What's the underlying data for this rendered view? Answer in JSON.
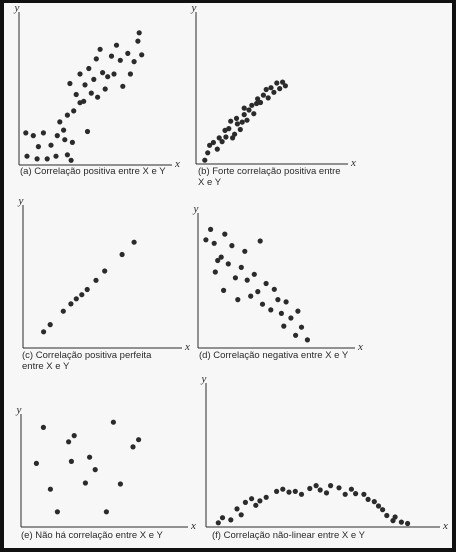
{
  "figure": {
    "background": "#111111",
    "paper_color": "#f7f7f7",
    "ink_color": "#2b2b2b",
    "axis_x_label": "x",
    "axis_y_label": "y"
  },
  "chart_data": [
    {
      "type": "scatter",
      "caption": "(a) Correlação positiva entre X e Y",
      "xlabel": "x",
      "ylabel": "y",
      "xlim": [
        0,
        10
      ],
      "ylim": [
        0,
        10
      ],
      "grid": false,
      "points": [
        [
          0.3,
          2.2
        ],
        [
          0.9,
          2.0
        ],
        [
          1.3,
          1.2
        ],
        [
          1.7,
          2.2
        ],
        [
          2.0,
          0.3
        ],
        [
          0.4,
          0.5
        ],
        [
          1.2,
          0.3
        ],
        [
          2.3,
          1.3
        ],
        [
          2.7,
          0.5
        ],
        [
          3.0,
          3.0
        ],
        [
          2.8,
          2.0
        ],
        [
          3.4,
          1.7
        ],
        [
          3.6,
          0.6
        ],
        [
          3.9,
          0.2
        ],
        [
          3.3,
          2.4
        ],
        [
          4.0,
          1.5
        ],
        [
          3.6,
          3.5
        ],
        [
          4.1,
          3.8
        ],
        [
          3.8,
          5.8
        ],
        [
          4.3,
          5.0
        ],
        [
          4.6,
          4.4
        ],
        [
          4.9,
          4.5
        ],
        [
          4.6,
          6.5
        ],
        [
          5.2,
          2.3
        ],
        [
          5.0,
          5.7
        ],
        [
          5.3,
          6.9
        ],
        [
          5.5,
          5.1
        ],
        [
          5.7,
          6.1
        ],
        [
          5.9,
          7.6
        ],
        [
          6.2,
          8.3
        ],
        [
          6.0,
          4.8
        ],
        [
          6.4,
          6.6
        ],
        [
          6.8,
          6.3
        ],
        [
          6.6,
          5.4
        ],
        [
          7.1,
          7.8
        ],
        [
          7.3,
          6.5
        ],
        [
          7.5,
          8.6
        ],
        [
          7.8,
          7.5
        ],
        [
          8.0,
          5.6
        ],
        [
          8.4,
          8.0
        ],
        [
          8.6,
          6.5
        ],
        [
          8.9,
          7.4
        ],
        [
          9.2,
          8.9
        ],
        [
          9.5,
          7.9
        ],
        [
          9.3,
          9.5
        ]
      ]
    },
    {
      "type": "scatter",
      "caption": "(b) Forte correlação positiva entre X e Y",
      "xlabel": "x",
      "ylabel": "y",
      "xlim": [
        0,
        10
      ],
      "ylim": [
        0,
        10
      ],
      "grid": false,
      "points": [
        [
          0.5,
          0.3
        ],
        [
          0.8,
          1.1
        ],
        [
          1.0,
          1.9
        ],
        [
          1.4,
          2.2
        ],
        [
          1.8,
          1.5
        ],
        [
          2.0,
          2.7
        ],
        [
          2.3,
          2.3
        ],
        [
          2.6,
          3.5
        ],
        [
          2.7,
          2.8
        ],
        [
          3.0,
          3.7
        ],
        [
          3.2,
          4.5
        ],
        [
          3.4,
          2.7
        ],
        [
          3.6,
          3.1
        ],
        [
          3.8,
          4.8
        ],
        [
          3.9,
          4.2
        ],
        [
          4.2,
          3.6
        ],
        [
          4.4,
          4.4
        ],
        [
          4.6,
          5.2
        ],
        [
          4.6,
          5.9
        ],
        [
          4.9,
          4.6
        ],
        [
          5.1,
          5.7
        ],
        [
          5.4,
          6.2
        ],
        [
          5.6,
          5.3
        ],
        [
          5.9,
          6.4
        ],
        [
          6.0,
          6.9
        ],
        [
          6.3,
          6.5
        ],
        [
          6.6,
          7.3
        ],
        [
          6.9,
          7.9
        ],
        [
          7.1,
          7.0
        ],
        [
          7.4,
          8.1
        ],
        [
          7.7,
          7.6
        ],
        [
          8.0,
          8.6
        ],
        [
          8.3,
          8.0
        ],
        [
          8.6,
          8.7
        ],
        [
          8.9,
          8.3
        ]
      ]
    },
    {
      "type": "scatter",
      "caption": "(c) Correlação positiva perfeita entre X e Y",
      "xlabel": "x",
      "ylabel": "y",
      "xlim": [
        0,
        10
      ],
      "ylim": [
        0,
        10
      ],
      "grid": false,
      "points": [
        [
          0.7,
          0.8
        ],
        [
          1.3,
          1.5
        ],
        [
          2.5,
          2.8
        ],
        [
          3.2,
          3.5
        ],
        [
          3.7,
          4.0
        ],
        [
          4.2,
          4.4
        ],
        [
          4.7,
          4.9
        ],
        [
          5.5,
          5.8
        ],
        [
          6.3,
          6.7
        ],
        [
          7.9,
          8.3
        ],
        [
          9.0,
          9.5
        ]
      ]
    },
    {
      "type": "scatter",
      "caption": "(d) Correlação negativa entre X e Y",
      "xlabel": "x",
      "ylabel": "y",
      "xlim": [
        0,
        10
      ],
      "ylim": [
        0,
        10
      ],
      "grid": false,
      "points": [
        [
          0.5,
          8.8
        ],
        [
          0.9,
          9.7
        ],
        [
          1.2,
          8.5
        ],
        [
          1.5,
          7.0
        ],
        [
          1.3,
          6.0
        ],
        [
          1.8,
          7.3
        ],
        [
          2.1,
          9.3
        ],
        [
          2.0,
          4.4
        ],
        [
          2.4,
          6.7
        ],
        [
          2.7,
          8.3
        ],
        [
          3.0,
          5.5
        ],
        [
          3.2,
          3.6
        ],
        [
          3.5,
          6.4
        ],
        [
          3.8,
          7.8
        ],
        [
          4.0,
          5.3
        ],
        [
          4.3,
          3.9
        ],
        [
          4.6,
          5.8
        ],
        [
          4.9,
          4.3
        ],
        [
          5.1,
          8.7
        ],
        [
          5.3,
          3.2
        ],
        [
          5.6,
          5.0
        ],
        [
          6.0,
          2.7
        ],
        [
          6.3,
          4.5
        ],
        [
          6.6,
          3.6
        ],
        [
          6.9,
          2.4
        ],
        [
          7.1,
          1.3
        ],
        [
          7.3,
          3.4
        ],
        [
          7.7,
          2.0
        ],
        [
          8.1,
          0.5
        ],
        [
          8.3,
          2.6
        ],
        [
          8.6,
          1.2
        ],
        [
          9.1,
          0.1
        ]
      ]
    },
    {
      "type": "scatter",
      "caption": "(e) Não há correlação entre X e Y",
      "xlabel": "x",
      "ylabel": "y",
      "xlim": [
        0,
        10
      ],
      "ylim": [
        0,
        10
      ],
      "grid": false,
      "points": [
        [
          0.6,
          5.3
        ],
        [
          1.1,
          8.8
        ],
        [
          1.6,
          2.8
        ],
        [
          2.1,
          0.6
        ],
        [
          3.1,
          5.5
        ],
        [
          2.9,
          7.4
        ],
        [
          3.3,
          8.0
        ],
        [
          4.1,
          3.4
        ],
        [
          4.4,
          5.9
        ],
        [
          4.8,
          4.7
        ],
        [
          5.6,
          0.6
        ],
        [
          6.1,
          9.3
        ],
        [
          6.6,
          3.3
        ],
        [
          7.5,
          6.9
        ],
        [
          7.9,
          7.6
        ]
      ]
    },
    {
      "type": "scatter",
      "caption": "(f) Correlação não-linear entre X e Y",
      "xlabel": "x",
      "ylabel": "y",
      "xlim": [
        0,
        10
      ],
      "ylim": [
        0,
        10
      ],
      "grid": false,
      "points": [
        [
          0.4,
          0.3
        ],
        [
          0.6,
          1.0
        ],
        [
          1.0,
          0.7
        ],
        [
          1.3,
          2.2
        ],
        [
          1.5,
          1.4
        ],
        [
          1.7,
          3.1
        ],
        [
          2.0,
          3.6
        ],
        [
          2.2,
          2.7
        ],
        [
          2.4,
          3.3
        ],
        [
          2.7,
          3.8
        ],
        [
          3.2,
          4.6
        ],
        [
          3.5,
          4.9
        ],
        [
          3.8,
          4.5
        ],
        [
          4.1,
          4.6
        ],
        [
          4.4,
          4.2
        ],
        [
          4.8,
          5.0
        ],
        [
          5.1,
          5.4
        ],
        [
          5.3,
          4.8
        ],
        [
          5.6,
          4.4
        ],
        [
          5.8,
          5.4
        ],
        [
          6.2,
          5.1
        ],
        [
          6.5,
          4.2
        ],
        [
          6.8,
          4.9
        ],
        [
          7.0,
          4.3
        ],
        [
          7.4,
          4.2
        ],
        [
          7.6,
          3.5
        ],
        [
          7.9,
          3.2
        ],
        [
          8.1,
          2.6
        ],
        [
          8.3,
          2.1
        ],
        [
          8.5,
          1.3
        ],
        [
          8.8,
          0.6
        ],
        [
          8.9,
          1.1
        ],
        [
          9.2,
          0.4
        ],
        [
          9.5,
          0.2
        ]
      ]
    }
  ]
}
